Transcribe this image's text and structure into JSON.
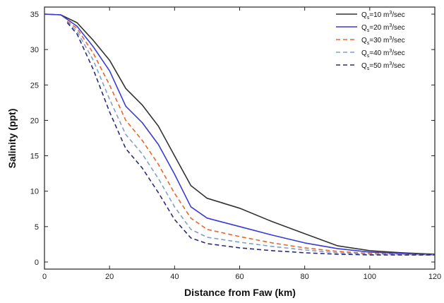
{
  "chart_data": {
    "type": "line",
    "title": "",
    "xlabel": "Distance from Faw (km)",
    "ylabel": "Salinity (ppt)",
    "xlim": [
      0,
      120
    ],
    "ylim": [
      -1,
      36
    ],
    "xticks": [
      0,
      20,
      40,
      60,
      80,
      100,
      120
    ],
    "yticks": [
      0,
      5,
      10,
      15,
      20,
      25,
      30,
      35
    ],
    "grid": false,
    "legend_position": "top-right",
    "series": [
      {
        "name": "Q_s=10 m³/sec",
        "legend_main": "Q",
        "legend_sub": "s",
        "legend_rest": "=10 m",
        "legend_sup": "3",
        "legend_tail": "/sec",
        "color": "#333333",
        "dashed": false,
        "x": [
          0,
          5,
          10,
          15,
          20,
          25,
          30,
          35,
          40,
          45,
          50,
          60,
          70,
          80,
          90,
          100,
          110,
          120
        ],
        "y": [
          35,
          34.9,
          33.8,
          31.3,
          28.5,
          24.5,
          22.2,
          19.2,
          15.0,
          10.8,
          9.0,
          7.6,
          5.7,
          4.0,
          2.3,
          1.6,
          1.3,
          1.1
        ]
      },
      {
        "name": "Q_s=20 m³/sec",
        "legend_main": "Q",
        "legend_sub": "s",
        "legend_rest": "=20 m",
        "legend_sup": "3",
        "legend_tail": "/sec",
        "color": "#3a3ad6",
        "dashed": false,
        "x": [
          0,
          5,
          10,
          15,
          20,
          25,
          30,
          35,
          40,
          45,
          50,
          60,
          70,
          80,
          90,
          100,
          110,
          120
        ],
        "y": [
          35,
          34.9,
          33.3,
          30.4,
          27.0,
          22.0,
          19.7,
          16.6,
          12.4,
          7.8,
          6.2,
          5.0,
          3.8,
          2.7,
          1.9,
          1.4,
          1.2,
          1.0
        ]
      },
      {
        "name": "Q_s=30 m³/sec",
        "legend_main": "Q",
        "legend_sub": "s",
        "legend_rest": "=30 m",
        "legend_sup": "3",
        "legend_tail": "/sec",
        "color": "#e8652a",
        "dashed": true,
        "x": [
          7,
          10,
          15,
          20,
          25,
          30,
          35,
          40,
          45,
          50,
          60,
          70,
          80,
          90,
          100,
          110,
          120
        ],
        "y": [
          34.0,
          33.0,
          29.5,
          25.0,
          20.0,
          17.2,
          13.8,
          9.7,
          6.2,
          4.6,
          3.6,
          2.7,
          2.0,
          1.5,
          1.2,
          1.1,
          1.0
        ]
      },
      {
        "name": "Q_s=40 m³/sec",
        "legend_main": "Q",
        "legend_sub": "s",
        "legend_rest": "=40 m",
        "legend_sup": "3",
        "legend_tail": "/sec",
        "color": "#7f9fd0",
        "dashed": true,
        "x": [
          7,
          10,
          15,
          20,
          25,
          30,
          35,
          40,
          45,
          50,
          60,
          70,
          80,
          90,
          100,
          110,
          120
        ],
        "y": [
          33.9,
          32.6,
          28.5,
          23.0,
          18.0,
          15.3,
          11.8,
          7.8,
          4.6,
          3.5,
          2.8,
          2.2,
          1.7,
          1.3,
          1.1,
          1.0,
          1.0
        ]
      },
      {
        "name": "Q_s=50 m³/sec",
        "legend_main": "Q",
        "legend_sub": "s",
        "legend_rest": "=50 m",
        "legend_sup": "3",
        "legend_tail": "/sec",
        "color": "#2a2a7a",
        "dashed": true,
        "x": [
          7,
          10,
          15,
          20,
          25,
          30,
          35,
          40,
          45,
          50,
          60,
          70,
          80,
          90,
          100,
          110,
          120
        ],
        "y": [
          33.8,
          32.2,
          27.2,
          21.2,
          16.0,
          13.3,
          9.8,
          6.0,
          3.4,
          2.6,
          2.0,
          1.6,
          1.3,
          1.1,
          1.0,
          1.0,
          1.0
        ]
      }
    ]
  }
}
